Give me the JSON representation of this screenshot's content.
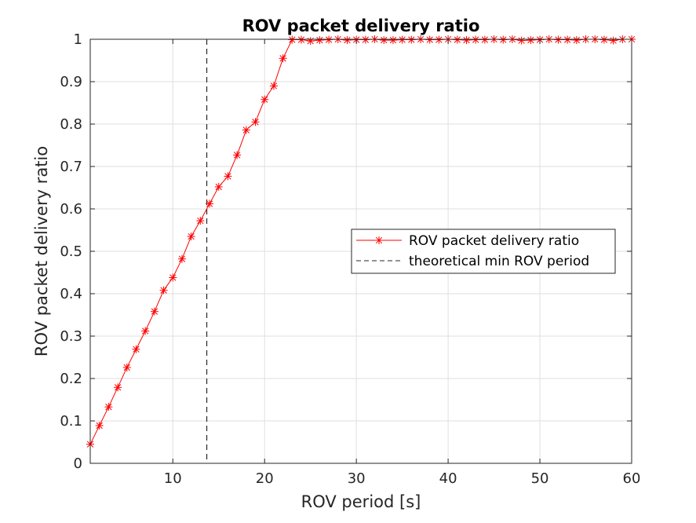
{
  "chart_data": {
    "type": "line",
    "title": "ROV packet delivery ratio",
    "xlabel": "ROV period [s]",
    "ylabel": "ROV packet delivery ratio",
    "xlim": [
      1,
      60
    ],
    "ylim": [
      0,
      1
    ],
    "xticks": [
      10,
      20,
      30,
      40,
      50,
      60
    ],
    "xtick_labels": [
      "10",
      "20",
      "30",
      "40",
      "50",
      "60"
    ],
    "yticks": [
      0,
      0.1,
      0.2,
      0.3,
      0.4,
      0.5,
      0.6,
      0.7,
      0.8,
      0.9,
      1
    ],
    "ytick_labels": [
      "0",
      "0.1",
      "0.2",
      "0.3",
      "0.4",
      "0.5",
      "0.6",
      "0.7",
      "0.8",
      "0.9",
      "1"
    ],
    "grid": true,
    "legend_position": "right",
    "series": [
      {
        "name": "ROV packet delivery ratio",
        "color": "#ff0000",
        "line_style": "solid",
        "marker": "asterisk",
        "x": [
          1,
          2,
          3,
          4,
          5,
          6,
          7,
          8,
          9,
          10,
          11,
          12,
          13,
          14,
          15,
          16,
          17,
          18,
          19,
          20,
          21,
          22,
          23,
          24,
          25,
          26,
          27,
          28,
          29,
          30,
          31,
          32,
          33,
          34,
          35,
          36,
          37,
          38,
          39,
          40,
          41,
          42,
          43,
          44,
          45,
          46,
          47,
          48,
          49,
          50,
          51,
          52,
          53,
          54,
          55,
          56,
          57,
          58,
          59,
          60
        ],
        "y": [
          0.045,
          0.089,
          0.133,
          0.179,
          0.226,
          0.269,
          0.312,
          0.358,
          0.408,
          0.438,
          0.482,
          0.535,
          0.572,
          0.612,
          0.652,
          0.677,
          0.727,
          0.786,
          0.805,
          0.858,
          0.89,
          0.955,
          0.999,
          0.999,
          0.996,
          0.998,
          0.999,
          1.0,
          0.998,
          0.999,
          0.999,
          1.0,
          0.998,
          0.998,
          0.999,
          0.999,
          1.0,
          0.999,
          0.999,
          1.0,
          0.999,
          0.998,
          0.999,
          0.999,
          1.0,
          0.999,
          1.0,
          0.997,
          0.998,
          0.999,
          1.0,
          0.999,
          0.999,
          0.998,
          1.0,
          1.0,
          0.999,
          0.997,
          1.0,
          1.0
        ]
      },
      {
        "name": "theoretical min ROV period",
        "color": "#262626",
        "line_style": "dashed",
        "vertical_x": 13.7
      }
    ]
  }
}
